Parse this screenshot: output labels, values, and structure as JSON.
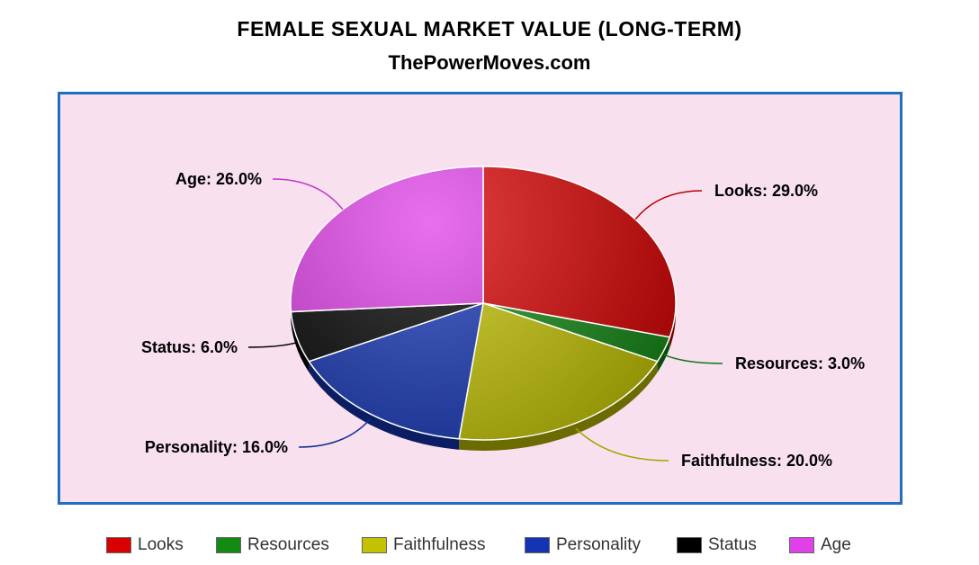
{
  "chart_data": {
    "type": "pie",
    "title": "FEMALE SEXUAL MARKET VALUE (LONG-TERM)",
    "subtitle": "ThePowerMoves.com",
    "legend_position": "bottom",
    "slices": [
      {
        "label": "Looks",
        "value": 29.0,
        "display": "Looks: 29.0%",
        "color": "#d90000"
      },
      {
        "label": "Resources",
        "value": 3.0,
        "display": "Resources: 3.0%",
        "color": "#138a13"
      },
      {
        "label": "Faithfulness",
        "value": 20.0,
        "display": "Faithfulness: 20.0%",
        "color": "#c2c200"
      },
      {
        "label": "Personality",
        "value": 16.0,
        "display": "Personality: 16.0%",
        "color": "#1434b4"
      },
      {
        "label": "Status",
        "value": 6.0,
        "display": "Status: 6.0%",
        "color": "#000000"
      },
      {
        "label": "Age",
        "value": 26.0,
        "display": "Age: 26.0%",
        "color": "#e040e8"
      }
    ]
  }
}
